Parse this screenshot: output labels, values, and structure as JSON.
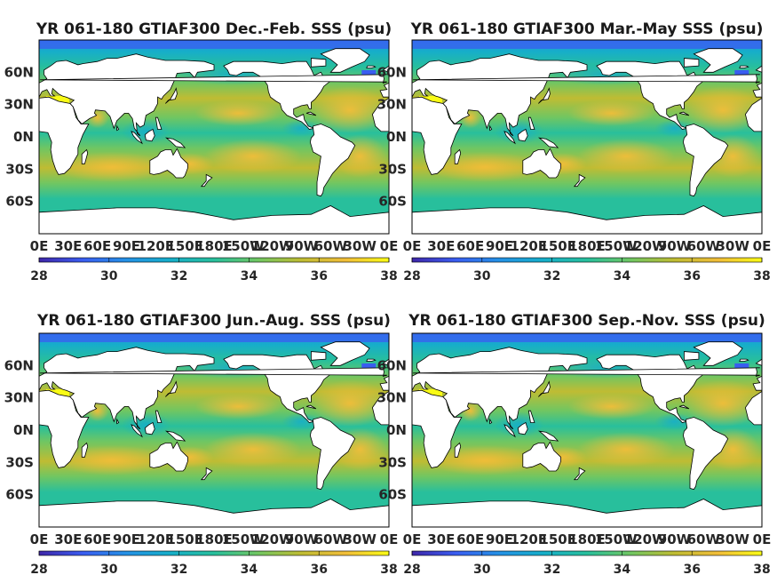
{
  "chart_data": [
    {
      "type": "heatmap",
      "title": "YR 061-180 GTIAF300 Dec.-Feb. SSS (psu)",
      "season": "DJF",
      "x_ticks": [
        "0E",
        "30E",
        "60E",
        "90E",
        "120E",
        "150E",
        "180E",
        "150W",
        "120W",
        "90W",
        "60W",
        "30W",
        "0E"
      ],
      "y_ticks": [
        "60N",
        "30N",
        "0N",
        "30S",
        "60S"
      ],
      "colorbar_ticks": [
        28,
        30,
        32,
        34,
        36,
        38
      ],
      "clim": [
        28,
        38
      ]
    },
    {
      "type": "heatmap",
      "title": "YR 061-180 GTIAF300 Mar.-May SSS (psu)",
      "season": "MAM",
      "x_ticks": [
        "0E",
        "30E",
        "60E",
        "90E",
        "120E",
        "150E",
        "180E",
        "150W",
        "120W",
        "90W",
        "60W",
        "30W",
        "0E"
      ],
      "y_ticks": [
        "60N",
        "30N",
        "0N",
        "30S",
        "60S"
      ],
      "colorbar_ticks": [
        28,
        30,
        32,
        34,
        36,
        38
      ],
      "clim": [
        28,
        38
      ]
    },
    {
      "type": "heatmap",
      "title": "YR 061-180 GTIAF300 Jun.-Aug. SSS (psu)",
      "season": "JJA",
      "x_ticks": [
        "0E",
        "30E",
        "60E",
        "90E",
        "120E",
        "150E",
        "180E",
        "150W",
        "120W",
        "90W",
        "60W",
        "30W",
        "0E"
      ],
      "y_ticks": [
        "60N",
        "30N",
        "0N",
        "30S",
        "60S"
      ],
      "colorbar_ticks": [
        28,
        30,
        32,
        34,
        36,
        38
      ],
      "clim": [
        28,
        38
      ]
    },
    {
      "type": "heatmap",
      "title": "YR 061-180 GTIAF300 Sep.-Nov. SSS (psu)",
      "season": "SON",
      "x_ticks": [
        "0E",
        "30E",
        "60E",
        "90E",
        "120E",
        "150E",
        "180E",
        "150W",
        "120W",
        "90W",
        "60W",
        "30W",
        "0E"
      ],
      "y_ticks": [
        "60N",
        "30N",
        "0N",
        "30S",
        "60S"
      ],
      "colorbar_ticks": [
        28,
        30,
        32,
        34,
        36,
        38
      ],
      "clim": [
        28,
        38
      ]
    }
  ],
  "colors": {
    "colormap": [
      "#3e26a8",
      "#3a5df0",
      "#2491e5",
      "#16aec9",
      "#28bf9c",
      "#70c662",
      "#bfbc33",
      "#f1bd39",
      "#f9fb15"
    ],
    "land": "#ffffff",
    "frame": "#000000"
  }
}
